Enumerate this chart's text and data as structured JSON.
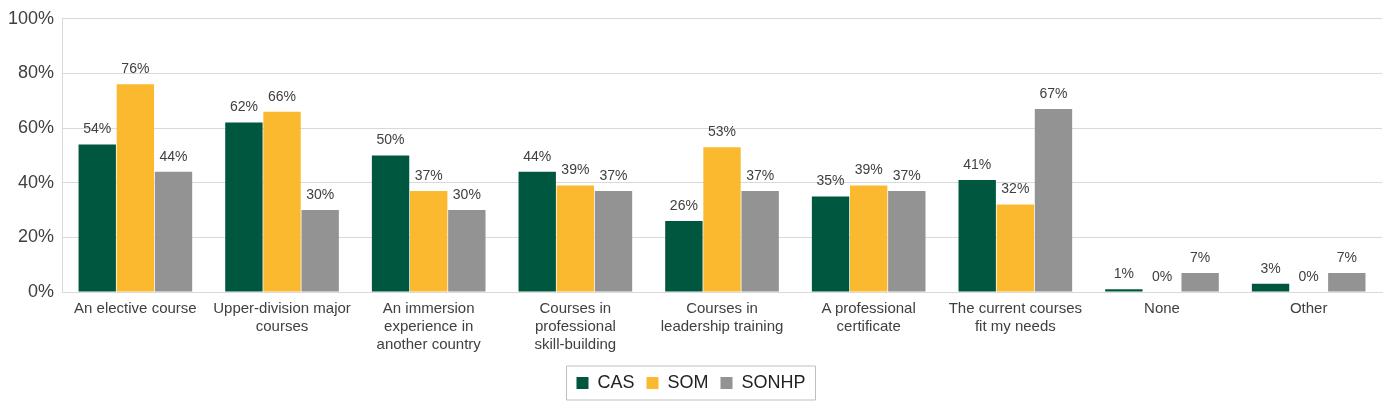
{
  "chart_data": {
    "type": "bar",
    "categories": [
      "An elective course",
      "Upper-division major courses",
      "An immersion experience in another country",
      "Courses in professional skill-building",
      "Courses in leadership training",
      "A professional certificate",
      "The current courses fit my needs",
      "None",
      "Other"
    ],
    "series": [
      {
        "name": "CAS",
        "color": "#00573f",
        "values": [
          54,
          62,
          50,
          44,
          26,
          35,
          41,
          1,
          3
        ],
        "value_labels": [
          "54%",
          "62%",
          "50%",
          "44%",
          "26%",
          "35%",
          "41%",
          "1%",
          "3%"
        ]
      },
      {
        "name": "SOM",
        "color": "#fbb92f",
        "values": [
          76,
          66,
          37,
          39,
          53,
          39,
          32,
          0,
          0
        ],
        "value_labels": [
          "76%",
          "66%",
          "37%",
          "39%",
          "53%",
          "39%",
          "32%",
          "0%",
          "0%"
        ]
      },
      {
        "name": "SONHP",
        "color": "#939393",
        "values": [
          44,
          30,
          30,
          37,
          37,
          37,
          67,
          7,
          7
        ],
        "value_labels": [
          "44%",
          "30%",
          "30%",
          "37%",
          "37%",
          "37%",
          "67%",
          "7%",
          "7%"
        ]
      }
    ],
    "ylim": [
      0,
      100
    ],
    "yticks": [
      {
        "value": 0,
        "label": "0%"
      },
      {
        "value": 20,
        "label": "20%"
      },
      {
        "value": 40,
        "label": "40%"
      },
      {
        "value": 60,
        "label": "60%"
      },
      {
        "value": 80,
        "label": "80%"
      },
      {
        "value": 100,
        "label": "100%"
      }
    ],
    "grid": "y",
    "legend": "bottom"
  }
}
